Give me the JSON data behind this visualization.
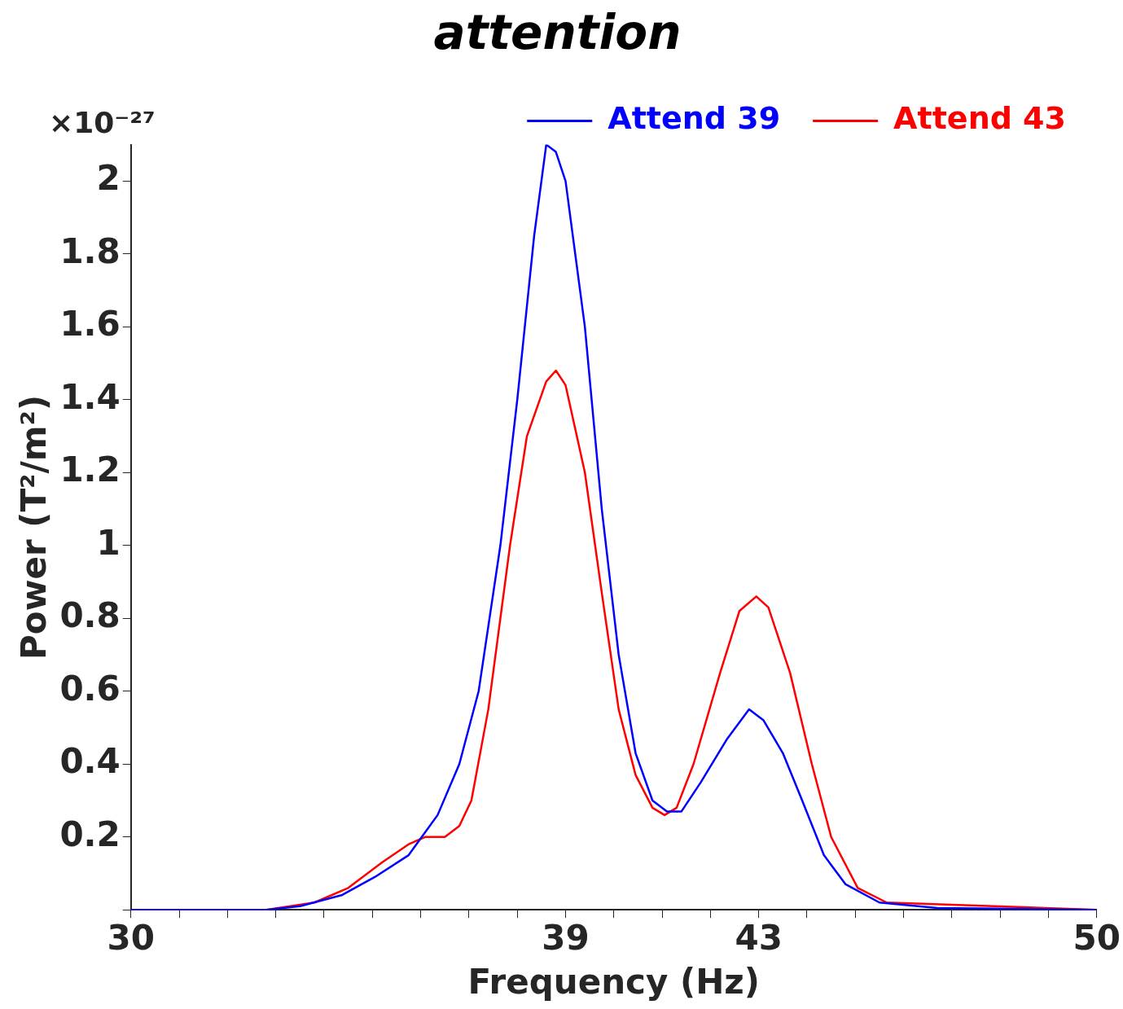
{
  "chart_data": {
    "type": "line",
    "title": "attention",
    "xlabel": "Frequency (Hz)",
    "ylabel": "Power (T²/m²)",
    "annotations": [
      "×10⁻²⁷"
    ],
    "xlim": [
      30,
      50
    ],
    "xticks": [
      30,
      {
        "value": 31,
        "label": null
      },
      {
        "value": 32,
        "label": null
      },
      {
        "value": 33,
        "label": null
      },
      {
        "value": 34,
        "label": null
      },
      {
        "value": 35,
        "label": null
      },
      {
        "value": 36,
        "label": null
      },
      {
        "value": 37,
        "label": null
      },
      {
        "value": 38,
        "label": null
      },
      39,
      {
        "value": 40,
        "label": null
      },
      {
        "value": 41,
        "label": null
      },
      {
        "value": 42,
        "label": null
      },
      43,
      {
        "value": 44,
        "label": null
      },
      {
        "value": 45,
        "label": null
      },
      {
        "value": 46,
        "label": null
      },
      {
        "value": 47,
        "label": null
      },
      {
        "value": 48,
        "label": null
      },
      {
        "value": 49,
        "label": null
      },
      50
    ],
    "ylim": [
      0,
      2.1
    ],
    "yticks": [
      {
        "value": 0,
        "label": null
      },
      0.2,
      0.4,
      0.6,
      0.8,
      1,
      1.2,
      1.4,
      1.6,
      1.8,
      2
    ],
    "grid": false,
    "legend": "top right",
    "marker": "none",
    "line_style": "solid",
    "series": [
      {
        "name": "Attend 39",
        "color": "#0000ff",
        "x": [
          30,
          32.8,
          33.5,
          34.36,
          35.05,
          35.75,
          36.35,
          36.8,
          37.2,
          37.65,
          38.0,
          38.35,
          38.6,
          38.8,
          39.0,
          39.4,
          39.75,
          40.1,
          40.45,
          40.8,
          41.1,
          41.4,
          41.8,
          42.35,
          42.8,
          43.1,
          43.5,
          43.9,
          44.35,
          44.8,
          45.5,
          46.7,
          50
        ],
        "values": [
          0,
          0,
          0.01,
          0.04,
          0.09,
          0.15,
          0.26,
          0.4,
          0.6,
          1.0,
          1.4,
          1.85,
          2.1,
          2.08,
          2.0,
          1.6,
          1.1,
          0.7,
          0.43,
          0.3,
          0.27,
          0.27,
          0.35,
          0.47,
          0.55,
          0.52,
          0.43,
          0.3,
          0.15,
          0.07,
          0.02,
          0.005,
          0
        ]
      },
      {
        "name": "Attend 43",
        "color": "#ff0000",
        "x": [
          30,
          32.8,
          33.8,
          34.5,
          35.2,
          35.75,
          36.1,
          36.5,
          36.8,
          37.05,
          37.4,
          37.85,
          38.2,
          38.6,
          38.8,
          39.0,
          39.4,
          39.75,
          40.1,
          40.45,
          40.8,
          41.05,
          41.3,
          41.65,
          42.2,
          42.6,
          42.95,
          43.2,
          43.65,
          44.1,
          44.5,
          45.05,
          45.65,
          50
        ],
        "values": [
          0,
          0,
          0.02,
          0.06,
          0.13,
          0.18,
          0.2,
          0.2,
          0.23,
          0.3,
          0.55,
          1.0,
          1.3,
          1.45,
          1.48,
          1.44,
          1.2,
          0.87,
          0.55,
          0.37,
          0.28,
          0.26,
          0.28,
          0.4,
          0.65,
          0.82,
          0.86,
          0.83,
          0.65,
          0.4,
          0.2,
          0.06,
          0.02,
          0
        ]
      }
    ]
  }
}
